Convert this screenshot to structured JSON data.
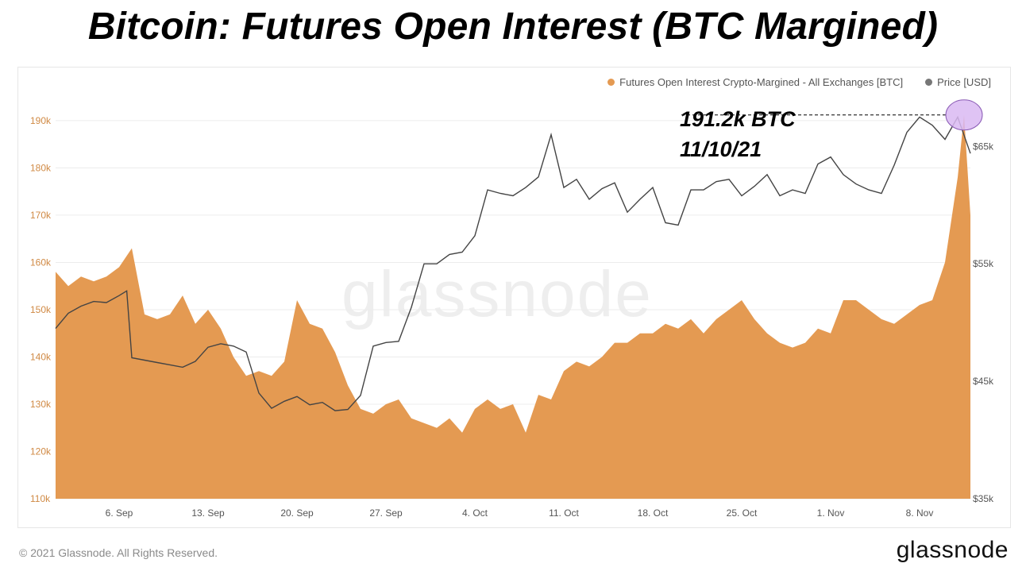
{
  "title": "Bitcoin: Futures Open Interest (BTC Margined)",
  "legend": {
    "series1_label": "Futures Open Interest Crypto-Margined - All Exchanges [BTC]",
    "series2_label": "Price [USD]",
    "series1_color": "#e49a52",
    "series2_color": "#777777"
  },
  "annotation": {
    "value": "191.2k BTC",
    "date": "11/10/21"
  },
  "watermark": "glassnode",
  "footer": {
    "copyright": "© 2021 Glassnode. All Rights Reserved.",
    "brand": "glassnode"
  },
  "chart_data": {
    "type": "area",
    "x_tick_labels": [
      "6. Sep",
      "13. Sep",
      "20. Sep",
      "27. Sep",
      "4. Oct",
      "11. Oct",
      "18. Oct",
      "25. Oct",
      "1. Nov",
      "8. Nov"
    ],
    "y_left_ticks": [
      "110k",
      "120k",
      "130k",
      "140k",
      "150k",
      "160k",
      "170k",
      "180k",
      "190k"
    ],
    "y_left_range": [
      110000,
      192000
    ],
    "y_right_ticks": [
      "$35k",
      "$45k",
      "$55k",
      "$65k"
    ],
    "y_right_range": [
      35000,
      68000
    ],
    "x_range_days": [
      0,
      72
    ],
    "series": [
      {
        "name": "Futures Open Interest Crypto-Margined - All Exchanges [BTC]",
        "axis": "left",
        "color": "#e49a52",
        "x": [
          0,
          1,
          2,
          3,
          4,
          5,
          6,
          7,
          8,
          9,
          10,
          11,
          12,
          13,
          14,
          15,
          16,
          17,
          18,
          19,
          20,
          21,
          22,
          23,
          24,
          25,
          26,
          27,
          28,
          29,
          30,
          31,
          32,
          33,
          34,
          35,
          36,
          37,
          38,
          39,
          40,
          41,
          42,
          43,
          44,
          45,
          46,
          47,
          48,
          49,
          50,
          51,
          52,
          53,
          54,
          55,
          56,
          57,
          58,
          59,
          60,
          61,
          62,
          63,
          64,
          65,
          66,
          67,
          68,
          69,
          70,
          71,
          71.5,
          72
        ],
        "y": [
          158000,
          155000,
          157000,
          156000,
          157000,
          159000,
          163000,
          149000,
          148000,
          149000,
          153000,
          147000,
          150000,
          146000,
          140000,
          136000,
          137000,
          136000,
          139000,
          152000,
          147000,
          146000,
          141000,
          134000,
          129000,
          128000,
          130000,
          131000,
          127000,
          126000,
          125000,
          127000,
          124000,
          129000,
          131000,
          129000,
          130000,
          124000,
          132000,
          131000,
          137000,
          139000,
          138000,
          140000,
          143000,
          143000,
          145000,
          145000,
          147000,
          146000,
          148000,
          145000,
          148000,
          150000,
          152000,
          148000,
          145000,
          143000,
          142000,
          143000,
          146000,
          145000,
          152000,
          152000,
          150000,
          148000,
          147000,
          149000,
          151000,
          152000,
          160000,
          178000,
          191200,
          170000
        ]
      },
      {
        "name": "Price [USD]",
        "axis": "right",
        "color": "#444444",
        "x": [
          0,
          1,
          2,
          3,
          4,
          5,
          5.6,
          6,
          7,
          8,
          9,
          10,
          11,
          12,
          13,
          14,
          15,
          16,
          17,
          18,
          19,
          20,
          21,
          22,
          23,
          24,
          25,
          26,
          27,
          28,
          29,
          30,
          31,
          32,
          33,
          34,
          35,
          36,
          37,
          38,
          39,
          40,
          41,
          42,
          43,
          44,
          45,
          46,
          47,
          48,
          49,
          50,
          51,
          52,
          53,
          54,
          55,
          56,
          57,
          58,
          59,
          60,
          61,
          62,
          63,
          64,
          65,
          66,
          67,
          68,
          69,
          70,
          71,
          72
        ],
        "y": [
          49500,
          50800,
          51400,
          51800,
          51700,
          52300,
          52700,
          47000,
          46800,
          46600,
          46400,
          46200,
          46700,
          47900,
          48200,
          48000,
          47500,
          44000,
          42700,
          43300,
          43700,
          43000,
          43200,
          42500,
          42600,
          43800,
          48000,
          48300,
          48400,
          51300,
          55000,
          55000,
          55800,
          56000,
          57400,
          61300,
          61000,
          60800,
          61500,
          62400,
          66000,
          61500,
          62200,
          60500,
          61400,
          61900,
          59400,
          60500,
          61500,
          58500,
          58300,
          61300,
          61300,
          62000,
          62200,
          60800,
          61600,
          62600,
          60800,
          61300,
          61000,
          63500,
          64100,
          62600,
          61800,
          61300,
          61000,
          63400,
          66200,
          67500,
          66800,
          65600,
          67500,
          64400
        ]
      }
    ],
    "grid": "horizontal",
    "legend_position": "top-right"
  }
}
